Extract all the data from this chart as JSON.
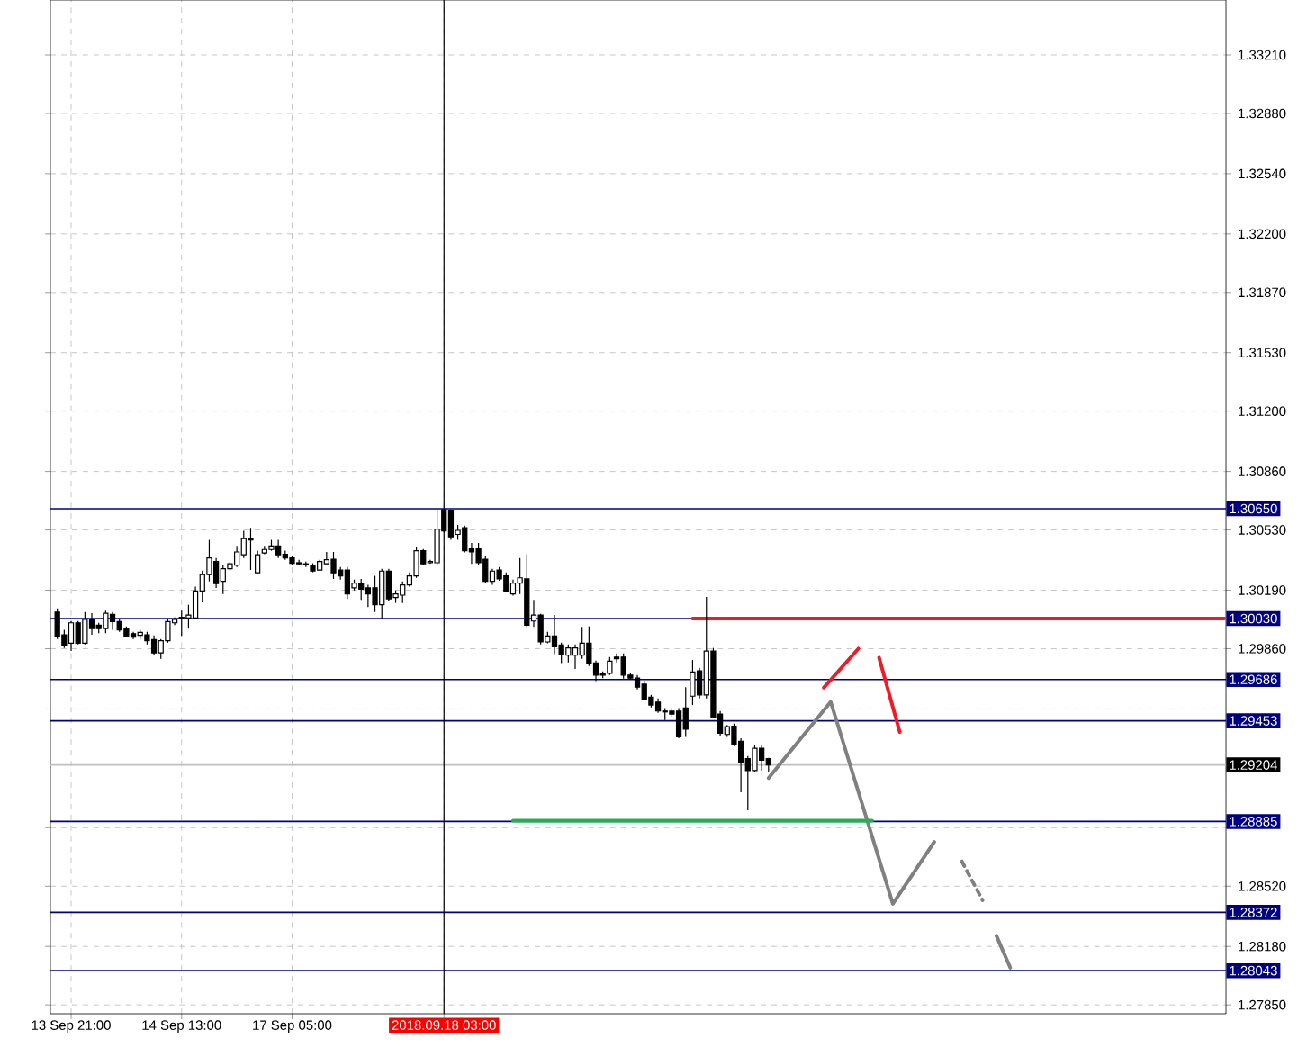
{
  "chart_data": {
    "type": "candlestick",
    "categories": [
      null,
      null,
      "13 Sep 21:00",
      null,
      null,
      null,
      null,
      null,
      null,
      null,
      null,
      null,
      null,
      null,
      null,
      null,
      null,
      null,
      "14 Sep 13:00",
      null,
      null,
      null,
      null,
      null,
      null,
      null,
      null,
      null,
      null,
      null,
      null,
      null,
      null,
      null,
      "17 Sep 05:00",
      null,
      null,
      null,
      null,
      null,
      null,
      null,
      null,
      null,
      null,
      null,
      null,
      null,
      null,
      null,
      null,
      null,
      null,
      null,
      null,
      null,
      "2018.09.18 03:00",
      null,
      null,
      null,
      null,
      null,
      null,
      null,
      null,
      null,
      null,
      null,
      null,
      null,
      null,
      null,
      null,
      null,
      null,
      null,
      null,
      null,
      null,
      null,
      null,
      null,
      null,
      null,
      null,
      null,
      null,
      null,
      null,
      null,
      null,
      null,
      null,
      null,
      null,
      null,
      null,
      null,
      null,
      null,
      null,
      null,
      null,
      null,
      null,
      null,
      null,
      null,
      null,
      null,
      null,
      null,
      null,
      null,
      null,
      null,
      null,
      null,
      null,
      null,
      null,
      null,
      null,
      null,
      null,
      null,
      null,
      null,
      null,
      null,
      null,
      null,
      null,
      null,
      null,
      null,
      null,
      null,
      null,
      null,
      null,
      null,
      null,
      null,
      null,
      null,
      null,
      null,
      null,
      null,
      null,
      null,
      null,
      null,
      null,
      null,
      null,
      null,
      null,
      null,
      null,
      null,
      null,
      null,
      null,
      null,
      null,
      null,
      null,
      null
    ],
    "ohlc": [
      [
        1.30067,
        1.30087,
        1.29915,
        1.29932
      ],
      [
        1.29938,
        1.29966,
        1.29864,
        1.29881
      ],
      [
        1.29891,
        1.30016,
        1.29847,
        1.30006
      ],
      [
        1.30006,
        1.30016,
        1.29884,
        1.29891
      ],
      [
        1.29891,
        1.30067,
        1.29884,
        1.30026
      ],
      [
        1.30026,
        1.3006,
        1.29938,
        1.29973
      ],
      [
        1.29993,
        1.30006,
        1.29948,
        1.29973
      ],
      [
        1.29973,
        1.30074,
        1.29948,
        1.3006
      ],
      [
        1.30054,
        1.30067,
        1.29966,
        1.30013
      ],
      [
        1.30013,
        1.30026,
        1.29955,
        1.29966
      ],
      [
        1.29973,
        1.29986,
        1.29925,
        1.29932
      ],
      [
        1.29945,
        1.29955,
        1.29915,
        1.29925
      ],
      [
        1.29935,
        1.29966,
        1.29915,
        1.29952
      ],
      [
        1.29938,
        1.29955,
        1.29884,
        1.29905
      ],
      [
        1.29911,
        1.29935,
        1.29826,
        1.29836
      ],
      [
        1.29836,
        1.29915,
        1.29803,
        1.29905
      ],
      [
        1.29905,
        1.30026,
        1.29894,
        1.30013
      ],
      [
        1.30006,
        1.30037,
        1.29993,
        1.30026
      ],
      [
        1.30033,
        1.30074,
        1.29932,
        1.30037
      ],
      [
        1.30033,
        1.30108,
        1.29973,
        1.3005
      ],
      [
        1.30033,
        1.3021,
        1.30026,
        1.30186
      ],
      [
        1.30186,
        1.30301,
        1.30121,
        1.30278
      ],
      [
        1.30278,
        1.30474,
        1.3024,
        1.30372
      ],
      [
        1.30352,
        1.30372,
        1.30203,
        1.30227
      ],
      [
        1.3024,
        1.30332,
        1.30169,
        1.30311
      ],
      [
        1.30311,
        1.30352,
        1.30301,
        1.30339
      ],
      [
        1.30332,
        1.3044,
        1.30321,
        1.30406
      ],
      [
        1.3039,
        1.30525,
        1.30372,
        1.30481
      ],
      [
        1.30481,
        1.30542,
        1.30304,
        1.30474
      ],
      [
        1.30288,
        1.30413,
        1.30281,
        1.3039
      ],
      [
        1.304,
        1.3044,
        1.30393,
        1.3042
      ],
      [
        1.3042,
        1.30474,
        1.30413,
        1.3044
      ],
      [
        1.3044,
        1.30474,
        1.30372,
        1.3039
      ],
      [
        1.30393,
        1.30413,
        1.30362,
        1.30372
      ],
      [
        1.30372,
        1.30382,
        1.30332,
        1.30342
      ],
      [
        1.30345,
        1.30362,
        1.30332,
        1.30339
      ],
      [
        1.30339,
        1.30352,
        1.30321,
        1.30335
      ],
      [
        1.30332,
        1.30342,
        1.30291,
        1.30298
      ],
      [
        1.30304,
        1.30362,
        1.30301,
        1.30352
      ],
      [
        1.30339,
        1.30406,
        1.30332,
        1.30362
      ],
      [
        1.30365,
        1.30406,
        1.30254,
        1.30288
      ],
      [
        1.30304,
        1.30321,
        1.3025,
        1.30271
      ],
      [
        1.30304,
        1.30321,
        1.30141,
        1.30169
      ],
      [
        1.30203,
        1.3025,
        1.30189,
        1.3023
      ],
      [
        1.3023,
        1.30254,
        1.30135,
        1.30196
      ],
      [
        1.30203,
        1.3022,
        1.30095,
        1.30169
      ],
      [
        1.30203,
        1.30271,
        1.30067,
        1.30108
      ],
      [
        1.30108,
        1.30311,
        1.30026,
        1.30298
      ],
      [
        1.30298,
        1.30311,
        1.30128,
        1.30141
      ],
      [
        1.30149,
        1.30189,
        1.30118,
        1.30169
      ],
      [
        1.30162,
        1.3024,
        1.30118,
        1.3022
      ],
      [
        1.3022,
        1.30291,
        1.3021,
        1.30271
      ],
      [
        1.30271,
        1.30433,
        1.3026,
        1.30413
      ],
      [
        1.30413,
        1.30423,
        1.30332,
        1.30339
      ],
      [
        1.30345,
        1.30362,
        1.30339,
        1.30352
      ],
      [
        1.30345,
        1.30644,
        1.30332,
        1.30535
      ],
      [
        1.30644,
        1.30647,
        1.30515,
        1.30525
      ],
      [
        1.30637,
        1.30644,
        1.30474,
        1.30491
      ],
      [
        1.30505,
        1.30559,
        1.30474,
        1.30528
      ],
      [
        1.30542,
        1.30555,
        1.30403,
        1.30413
      ],
      [
        1.30423,
        1.30457,
        1.30339,
        1.30406
      ],
      [
        1.30423,
        1.30457,
        1.30332,
        1.30345
      ],
      [
        1.30365,
        1.30382,
        1.3023,
        1.3024
      ],
      [
        1.3024,
        1.30311,
        1.3022,
        1.30298
      ],
      [
        1.30304,
        1.30321,
        1.30244,
        1.30254
      ],
      [
        1.30271,
        1.30291,
        1.30179,
        1.30186
      ],
      [
        1.30169,
        1.3025,
        1.30159,
        1.3023
      ],
      [
        1.3023,
        1.30372,
        1.30169,
        1.3026
      ],
      [
        1.30254,
        1.30393,
        1.29983,
        1.29993
      ],
      [
        1.30016,
        1.30135,
        1.29983,
        1.3005
      ],
      [
        1.3005,
        1.30057,
        1.29884,
        1.29898
      ],
      [
        1.29898,
        1.29955,
        1.29891,
        1.29932
      ],
      [
        1.29932,
        1.3005,
        1.2983,
        1.29871
      ],
      [
        1.29881,
        1.29894,
        1.29779,
        1.2983
      ],
      [
        1.29823,
        1.29884,
        1.29782,
        1.29864
      ],
      [
        1.29823,
        1.29884,
        1.29745,
        1.29864
      ],
      [
        1.29823,
        1.29983,
        1.29803,
        1.29891
      ],
      [
        1.29891,
        1.29986,
        1.29762,
        1.29779
      ],
      [
        1.29779,
        1.29793,
        1.29677,
        1.29711
      ],
      [
        1.29721,
        1.29732,
        1.29694,
        1.29711
      ],
      [
        1.29721,
        1.29813,
        1.29711,
        1.29789
      ],
      [
        1.29813,
        1.29833,
        1.29782,
        1.29803
      ],
      [
        1.29813,
        1.29833,
        1.29691,
        1.29711
      ],
      [
        1.29711,
        1.29721,
        1.29686,
        1.29694
      ],
      [
        1.29694,
        1.29711,
        1.2963,
        1.29643
      ],
      [
        1.2966,
        1.29681,
        1.29569,
        1.29576
      ],
      [
        1.29586,
        1.29599,
        1.29528,
        1.29542
      ],
      [
        1.29559,
        1.29579,
        1.29498,
        1.29508
      ],
      [
        1.29508,
        1.29525,
        1.29457,
        1.29503
      ],
      [
        1.29508,
        1.29525,
        1.29477,
        1.29491
      ],
      [
        1.29508,
        1.29525,
        1.29355,
        1.29362
      ],
      [
        1.29525,
        1.29643,
        1.29362,
        1.29406
      ],
      [
        1.29592,
        1.29796,
        1.29542,
        1.29728
      ],
      [
        1.29735,
        1.29752,
        1.29579,
        1.29599
      ],
      [
        1.29599,
        1.30152,
        1.29579,
        1.29847
      ],
      [
        1.29847,
        1.29864,
        1.29467,
        1.29474
      ],
      [
        1.29491,
        1.29508,
        1.29365,
        1.29383
      ],
      [
        1.29376,
        1.2943,
        1.29362,
        1.2942
      ],
      [
        1.29423,
        1.29437,
        1.29311,
        1.29322
      ],
      [
        1.29338,
        1.29355,
        1.2905,
        1.2922
      ],
      [
        1.2924,
        1.29254,
        1.28948,
        1.29172
      ],
      [
        1.29172,
        1.29318,
        1.29162,
        1.29298
      ],
      [
        1.29298,
        1.29318,
        1.29172,
        1.2923
      ],
      [
        1.2924,
        1.29244,
        1.29162,
        1.29204
      ],
      null,
      null,
      null,
      null,
      null,
      null,
      null,
      null,
      null,
      null,
      null,
      null,
      null,
      null,
      null,
      null,
      null,
      null,
      null,
      null,
      null,
      null,
      null,
      null,
      null,
      null,
      null,
      null,
      null,
      null,
      null,
      null,
      null,
      null,
      null,
      null,
      null,
      null,
      null,
      null,
      null,
      null,
      null,
      null,
      null,
      null,
      null,
      null,
      null,
      null,
      null,
      null,
      null,
      null,
      null,
      null,
      null,
      null,
      null,
      null,
      null,
      null,
      null,
      null,
      null,
      null
    ],
    "series": [
      {
        "type": "line",
        "color": "#808080",
        "values": [
          null,
          null,
          null,
          null,
          null,
          null,
          null,
          null,
          null,
          null,
          null,
          null,
          null,
          null,
          null,
          null,
          null,
          null,
          null,
          null,
          null,
          null,
          null,
          null,
          null,
          null,
          null,
          null,
          null,
          null,
          null,
          null,
          null,
          null,
          null,
          null,
          null,
          null,
          null,
          null,
          null,
          null,
          null,
          null,
          null,
          null,
          null,
          null,
          null,
          null,
          null,
          null,
          null,
          null,
          null,
          null,
          null,
          null,
          null,
          null,
          null,
          null,
          null,
          null,
          null,
          null,
          null,
          null,
          null,
          null,
          null,
          null,
          null,
          null,
          null,
          null,
          null,
          null,
          null,
          null,
          null,
          null,
          null,
          null,
          null,
          null,
          null,
          null,
          null,
          null,
          null,
          null,
          null,
          null,
          null,
          null,
          null,
          null,
          null,
          null,
          null,
          null,
          null,
          1.2913,
          null,
          null,
          null,
          null,
          null,
          null,
          null,
          null,
          1.2956,
          null,
          null,
          null,
          null,
          null,
          null,
          null,
          null,
          1.2842,
          null,
          null,
          null,
          null,
          null,
          1.2877,
          null,
          null,
          null,
          null,
          null,
          null,
          null,
          null,
          null,
          null,
          null,
          null,
          null,
          null,
          null,
          null,
          null,
          null,
          null,
          null,
          null,
          null,
          null,
          null,
          null,
          null,
          null,
          null,
          null,
          null,
          null,
          null,
          null,
          null,
          null,
          null,
          null,
          null,
          null,
          null,
          null,
          null
        ]
      },
      {
        "type": "line",
        "color": "#808080",
        "line_style": "dashed",
        "values": [
          null,
          null,
          null,
          null,
          null,
          null,
          null,
          null,
          null,
          null,
          null,
          null,
          null,
          null,
          null,
          null,
          null,
          null,
          null,
          null,
          null,
          null,
          null,
          null,
          null,
          null,
          null,
          null,
          null,
          null,
          null,
          null,
          null,
          null,
          null,
          null,
          null,
          null,
          null,
          null,
          null,
          null,
          null,
          null,
          null,
          null,
          null,
          null,
          null,
          null,
          null,
          null,
          null,
          null,
          null,
          null,
          null,
          null,
          null,
          null,
          null,
          null,
          null,
          null,
          null,
          null,
          null,
          null,
          null,
          null,
          null,
          null,
          null,
          null,
          null,
          null,
          null,
          null,
          null,
          null,
          null,
          null,
          null,
          null,
          null,
          null,
          null,
          null,
          null,
          null,
          null,
          null,
          null,
          null,
          null,
          null,
          null,
          null,
          null,
          null,
          null,
          null,
          null,
          null,
          null,
          null,
          null,
          null,
          null,
          null,
          null,
          null,
          null,
          null,
          null,
          null,
          null,
          null,
          null,
          null,
          null,
          null,
          null,
          null,
          null,
          null,
          null,
          null,
          null,
          null,
          null,
          1.2866,
          null,
          null,
          1.2844,
          null,
          null,
          null,
          null,
          null,
          null,
          null,
          null,
          null,
          null,
          null,
          null,
          null,
          null,
          null,
          null,
          null,
          null,
          null,
          null,
          null,
          null,
          null,
          null,
          null,
          null,
          null,
          null,
          null,
          null,
          null,
          null,
          null,
          null,
          null
        ]
      },
      {
        "type": "line",
        "color": "#808080",
        "values": [
          null,
          null,
          null,
          null,
          null,
          null,
          null,
          null,
          null,
          null,
          null,
          null,
          null,
          null,
          null,
          null,
          null,
          null,
          null,
          null,
          null,
          null,
          null,
          null,
          null,
          null,
          null,
          null,
          null,
          null,
          null,
          null,
          null,
          null,
          null,
          null,
          null,
          null,
          null,
          null,
          null,
          null,
          null,
          null,
          null,
          null,
          null,
          null,
          null,
          null,
          null,
          null,
          null,
          null,
          null,
          null,
          null,
          null,
          null,
          null,
          null,
          null,
          null,
          null,
          null,
          null,
          null,
          null,
          null,
          null,
          null,
          null,
          null,
          null,
          null,
          null,
          null,
          null,
          null,
          null,
          null,
          null,
          null,
          null,
          null,
          null,
          null,
          null,
          null,
          null,
          null,
          null,
          null,
          null,
          null,
          null,
          null,
          null,
          null,
          null,
          null,
          null,
          null,
          null,
          null,
          null,
          null,
          null,
          null,
          null,
          null,
          null,
          null,
          null,
          null,
          null,
          null,
          null,
          null,
          null,
          null,
          null,
          null,
          null,
          null,
          null,
          null,
          null,
          null,
          null,
          null,
          null,
          null,
          null,
          null,
          null,
          1.2824,
          null,
          1.2806,
          null,
          null,
          null,
          null,
          null,
          null,
          null,
          null,
          null,
          null,
          null,
          null,
          null,
          null,
          null,
          null,
          null,
          null,
          null,
          null,
          null,
          null,
          null,
          null,
          null,
          null,
          null,
          null,
          null,
          null,
          null
        ]
      },
      {
        "type": "line",
        "color": "#ee1c25",
        "values": [
          null,
          null,
          null,
          null,
          null,
          null,
          null,
          null,
          null,
          null,
          null,
          null,
          null,
          null,
          null,
          null,
          null,
          null,
          null,
          null,
          null,
          null,
          null,
          null,
          null,
          null,
          null,
          null,
          null,
          null,
          null,
          null,
          null,
          null,
          null,
          null,
          null,
          null,
          null,
          null,
          null,
          null,
          null,
          null,
          null,
          null,
          null,
          null,
          null,
          null,
          null,
          null,
          null,
          null,
          null,
          null,
          null,
          null,
          null,
          null,
          null,
          null,
          null,
          null,
          null,
          null,
          null,
          null,
          null,
          null,
          null,
          null,
          null,
          null,
          null,
          null,
          null,
          null,
          null,
          null,
          null,
          null,
          null,
          null,
          null,
          null,
          null,
          null,
          null,
          null,
          null,
          null,
          null,
          null,
          null,
          null,
          null,
          null,
          null,
          null,
          null,
          null,
          null,
          null,
          null,
          null,
          null,
          null,
          null,
          null,
          null,
          1.2964,
          null,
          null,
          null,
          null,
          1.2986,
          null,
          null,
          null,
          null,
          null,
          null,
          null,
          null,
          null,
          null,
          null,
          null,
          null,
          null,
          null,
          null,
          null,
          null,
          null,
          null,
          null,
          null,
          null,
          null,
          null,
          null,
          null,
          null,
          null,
          null,
          null,
          null,
          null,
          null,
          null,
          null,
          null,
          null,
          null,
          null,
          null,
          null,
          null,
          null,
          null,
          null,
          null,
          null,
          null,
          null,
          null,
          null,
          null
        ]
      },
      {
        "type": "line",
        "color": "#ee1c25",
        "values": [
          null,
          null,
          null,
          null,
          null,
          null,
          null,
          null,
          null,
          null,
          null,
          null,
          null,
          null,
          null,
          null,
          null,
          null,
          null,
          null,
          null,
          null,
          null,
          null,
          null,
          null,
          null,
          null,
          null,
          null,
          null,
          null,
          null,
          null,
          null,
          null,
          null,
          null,
          null,
          null,
          null,
          null,
          null,
          null,
          null,
          null,
          null,
          null,
          null,
          null,
          null,
          null,
          null,
          null,
          null,
          null,
          null,
          null,
          null,
          null,
          null,
          null,
          null,
          null,
          null,
          null,
          null,
          null,
          null,
          null,
          null,
          null,
          null,
          null,
          null,
          null,
          null,
          null,
          null,
          null,
          null,
          null,
          null,
          null,
          null,
          null,
          null,
          null,
          null,
          null,
          null,
          null,
          null,
          null,
          null,
          null,
          null,
          null,
          null,
          null,
          null,
          null,
          null,
          null,
          null,
          null,
          null,
          null,
          null,
          null,
          null,
          null,
          null,
          null,
          null,
          null,
          null,
          null,
          null,
          1.2981,
          null,
          null,
          1.2939,
          null,
          null,
          null,
          null,
          null,
          null,
          null,
          null,
          null,
          null,
          null,
          null,
          null,
          null,
          null,
          null,
          null,
          null,
          null,
          null,
          null,
          null,
          null,
          null,
          null,
          null,
          null,
          null,
          null,
          null,
          null,
          null,
          null,
          null,
          null,
          null,
          null,
          null,
          null,
          null,
          null,
          null,
          null,
          null,
          null,
          null,
          null
        ]
      },
      {
        "type": "line",
        "color": "#ee1c25",
        "values": [
          null,
          null,
          null,
          null,
          null,
          null,
          null,
          null,
          null,
          null,
          null,
          null,
          null,
          null,
          null,
          null,
          null,
          null,
          null,
          null,
          null,
          null,
          null,
          null,
          null,
          null,
          null,
          null,
          null,
          null,
          null,
          null,
          null,
          null,
          null,
          null,
          null,
          null,
          null,
          null,
          null,
          null,
          null,
          null,
          null,
          null,
          null,
          null,
          null,
          null,
          null,
          null,
          null,
          null,
          null,
          null,
          null,
          null,
          null,
          null,
          null,
          null,
          null,
          null,
          null,
          null,
          null,
          null,
          null,
          null,
          null,
          null,
          null,
          null,
          null,
          null,
          null,
          null,
          null,
          null,
          null,
          null,
          null,
          null,
          null,
          null,
          null,
          null,
          null,
          null,
          null,
          null,
          1.3003,
          null,
          null,
          null,
          null,
          null,
          null,
          null,
          null,
          null,
          null,
          null,
          null,
          null,
          null,
          null,
          null,
          null,
          null,
          null,
          null,
          null,
          null,
          null,
          null,
          null,
          null,
          null,
          null,
          null,
          null,
          null,
          null,
          null,
          null,
          null,
          null,
          null,
          null,
          null,
          null,
          null,
          null,
          null,
          null,
          null,
          null,
          null,
          null,
          null,
          null,
          null,
          null,
          null,
          null,
          null,
          null,
          null,
          null,
          null,
          null,
          null,
          null,
          null,
          null,
          null,
          null,
          null,
          null,
          null,
          null,
          null,
          null,
          null,
          null,
          null,
          null,
          1.3003
        ]
      },
      {
        "type": "line",
        "color": "#22b14c",
        "values": [
          null,
          null,
          null,
          null,
          null,
          null,
          null,
          null,
          null,
          null,
          null,
          null,
          null,
          null,
          null,
          null,
          null,
          null,
          null,
          null,
          null,
          null,
          null,
          null,
          null,
          null,
          null,
          null,
          null,
          null,
          null,
          null,
          null,
          null,
          null,
          null,
          null,
          null,
          null,
          null,
          null,
          null,
          null,
          null,
          null,
          null,
          null,
          null,
          null,
          null,
          null,
          null,
          null,
          null,
          null,
          null,
          null,
          null,
          null,
          null,
          null,
          null,
          null,
          null,
          null,
          null,
          1.2889,
          null,
          null,
          null,
          null,
          null,
          null,
          null,
          null,
          null,
          null,
          null,
          null,
          null,
          null,
          null,
          null,
          null,
          null,
          null,
          null,
          null,
          null,
          null,
          null,
          null,
          null,
          null,
          null,
          null,
          null,
          null,
          null,
          null,
          null,
          null,
          null,
          null,
          null,
          null,
          null,
          null,
          null,
          null,
          null,
          null,
          null,
          null,
          null,
          null,
          null,
          null,
          1.2889,
          null,
          null,
          null,
          null,
          null,
          null,
          null,
          null,
          null,
          null,
          null,
          null,
          null,
          null,
          null,
          null,
          null,
          null,
          null,
          null,
          null,
          null,
          null,
          null,
          null,
          null,
          null,
          null,
          null,
          null,
          null,
          null,
          null,
          null,
          null,
          null,
          null,
          null,
          null,
          null,
          null,
          null,
          null,
          null,
          null,
          null,
          null,
          null,
          null,
          null,
          null
        ]
      }
    ],
    "ylim": [
      1.278,
      1.3352
    ],
    "yticks": [
      {
        "value": 1.3321,
        "label": "1.33210"
      },
      {
        "value": 1.3288,
        "label": "1.32880"
      },
      {
        "value": 1.3254,
        "label": "1.32540"
      },
      {
        "value": 1.322,
        "label": "1.32200"
      },
      {
        "value": 1.3187,
        "label": "1.31870"
      },
      {
        "value": 1.3153,
        "label": "1.31530"
      },
      {
        "value": 1.312,
        "label": "1.31200"
      },
      {
        "value": 1.3086,
        "label": "1.30860"
      },
      {
        "value": 1.3053,
        "label": "1.30530"
      },
      {
        "value": 1.3019,
        "label": "1.30190"
      },
      {
        "value": 1.2986,
        "label": "1.29860"
      },
      {
        "value": 1.2952,
        "label": null
      },
      {
        "value": 1.2885,
        "label": null
      },
      {
        "value": 1.2852,
        "label": "1.28520"
      },
      {
        "value": 1.2818,
        "label": "1.28180"
      },
      {
        "value": 1.2785,
        "label": "1.27850"
      }
    ],
    "ref_lines": [
      {
        "axis": "y",
        "value": 1.3065,
        "label": "1.30650",
        "color": "#000080"
      },
      {
        "axis": "y",
        "value": 1.3003,
        "label": "1.30030",
        "color": "#000080"
      },
      {
        "axis": "y",
        "value": 1.29686,
        "label": "1.29686",
        "color": "#000080"
      },
      {
        "axis": "y",
        "value": 1.29453,
        "label": "1.29453",
        "color": "#000080"
      },
      {
        "axis": "y",
        "value": 1.28885,
        "label": "1.28885",
        "color": "#000080"
      },
      {
        "axis": "y",
        "value": 1.28372,
        "label": "1.28372",
        "color": "#000080"
      },
      {
        "axis": "y",
        "value": 1.28043,
        "label": "1.28043",
        "color": "#000080"
      },
      {
        "axis": "y",
        "value": 1.29204,
        "label": "1.29204",
        "color": "#c0c0c0"
      },
      {
        "axis": "x",
        "value": "2018.09.18 03:00",
        "color": "#000000"
      }
    ],
    "grid": true
  }
}
